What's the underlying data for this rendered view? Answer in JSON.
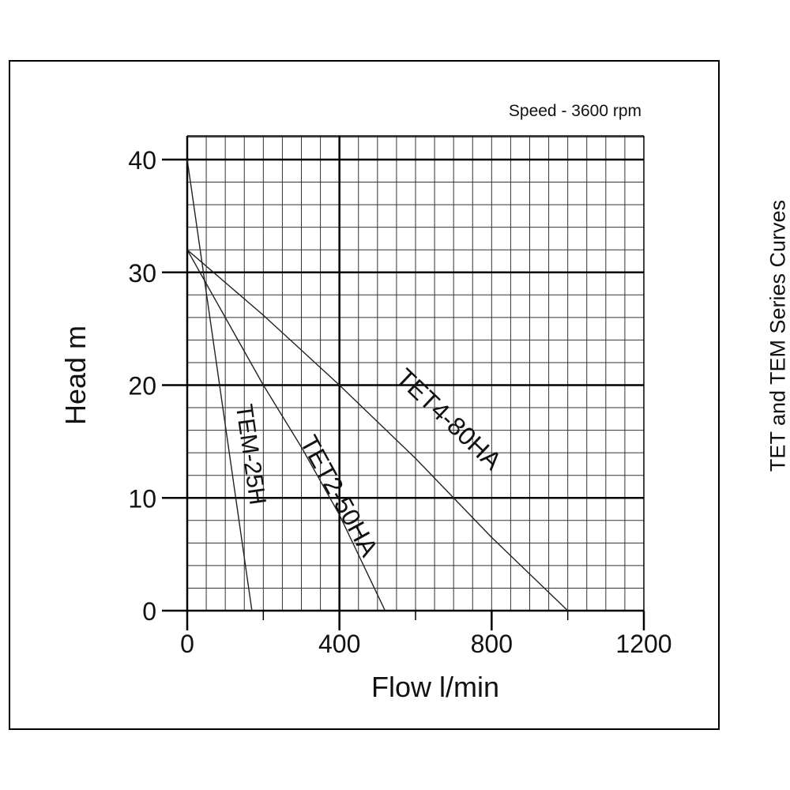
{
  "chart_data": {
    "type": "line",
    "title": "TET and TEM Series Curves",
    "subtitle": "Speed - 3600 rpm",
    "xlabel": "Flow l/min",
    "ylabel": "Head m",
    "xlim": [
      0,
      1200
    ],
    "ylim": [
      0,
      42
    ],
    "x_ticks": [
      0,
      400,
      800,
      1200
    ],
    "y_ticks": [
      0,
      10,
      20,
      30,
      40
    ],
    "grid": true,
    "series": [
      {
        "name": "TEM-25H",
        "points": [
          [
            0,
            40
          ],
          [
            170,
            0
          ]
        ]
      },
      {
        "name": "TET2-50HA",
        "points": [
          [
            0,
            32
          ],
          [
            100,
            26
          ],
          [
            200,
            20
          ],
          [
            300,
            14.5
          ],
          [
            400,
            8.5
          ],
          [
            520,
            0
          ]
        ]
      },
      {
        "name": "TET4-80HA",
        "points": [
          [
            0,
            32
          ],
          [
            200,
            26.2
          ],
          [
            400,
            20
          ],
          [
            600,
            13.5
          ],
          [
            800,
            6.5
          ],
          [
            1000,
            0
          ]
        ]
      }
    ],
    "series_colors": [
      "#222222",
      "#222222",
      "#222222"
    ]
  }
}
